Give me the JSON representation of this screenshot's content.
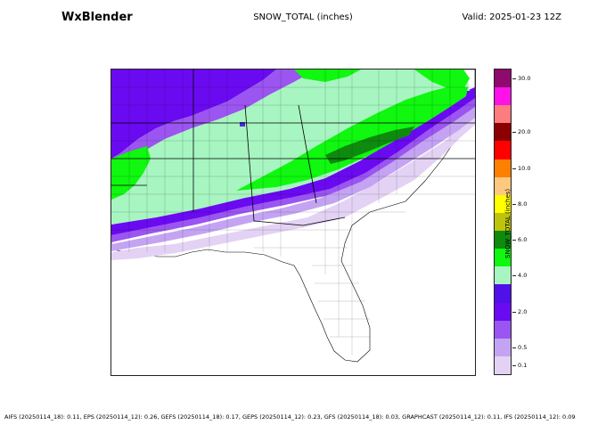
{
  "header": {
    "brand": "WxBlender",
    "title": "SNOW_TOTAL (inches)",
    "valid": "Valid: 2025-01-23 12Z"
  },
  "colorbar": {
    "title": "SNOW_TOTAL (inches)",
    "bins": [
      {
        "low": 0.1,
        "color": "#e4d2f5"
      },
      {
        "low": 0.5,
        "color": "#c4a4f2"
      },
      {
        "low": 1.0,
        "color": "#9b55f0"
      },
      {
        "low": 2.0,
        "color": "#6a0af0"
      },
      {
        "low": 3.0,
        "color": "#5010e8"
      },
      {
        "low": 4.0,
        "color": "#a7f5c0"
      },
      {
        "low": 5.0,
        "color": "#10f710"
      },
      {
        "low": 6.0,
        "color": "#0e8a0e"
      },
      {
        "low": 7.0,
        "color": "#bcc40c"
      },
      {
        "low": 8.0,
        "color": "#ffff00"
      },
      {
        "low": 9.0,
        "color": "#fec880"
      },
      {
        "low": 10.0,
        "color": "#fe8000"
      },
      {
        "low": 15.0,
        "color": "#fe0000"
      },
      {
        "low": 20.0,
        "color": "#8b0000"
      },
      {
        "low": 22.0,
        "color": "#fc7c80"
      },
      {
        "low": 25.0,
        "color": "#ff12e8"
      },
      {
        "low": 30.0,
        "color": "#8e0a6e"
      }
    ],
    "labels": [
      "0.1",
      "0.5",
      "2.0",
      "4.0",
      "6.0",
      "8.0",
      "10.0",
      "20.0",
      "30.0"
    ]
  },
  "footer": "AIFS (20250114_18): 0.11, EPS (20250114_12): 0.26, GEFS (20250114_18): 0.17, GEPS (20250114_12): 0.23, GFS (20250114_18): 0.03, GRAPHCAST (20250114_12): 0.11, IFS (20250114_12): 0.09"
}
